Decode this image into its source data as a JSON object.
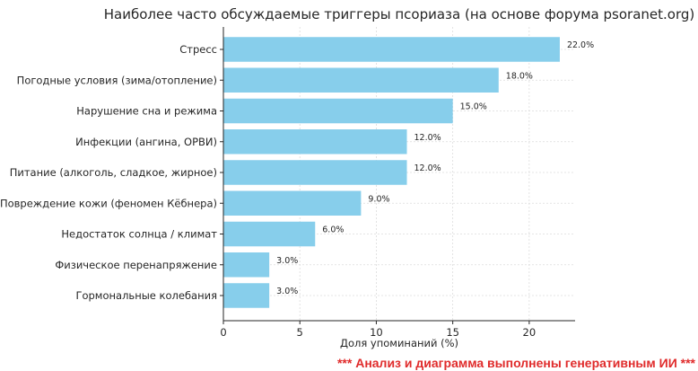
{
  "chart_data": {
    "type": "bar",
    "orientation": "horizontal",
    "title": "Наиболее часто обсуждаемые триггеры псориаза (на основе форума psoranet.org)",
    "xlabel": "Доля упоминаний (%)",
    "ylabel": "",
    "categories": [
      "Стресс",
      "Погодные условия (зима/отопление)",
      "Нарушение сна и режима",
      "Инфекции (ангина, ОРВИ)",
      "Питание (алкоголь, сладкое, жирное)",
      "Повреждение кожи (феномен Кёбнера)",
      "Недостаток солнца / климат",
      "Физическое перенапряжение",
      "Гормональные колебания"
    ],
    "values": [
      22.0,
      18.0,
      15.0,
      12.0,
      12.0,
      9.0,
      6.0,
      3.0,
      3.0
    ],
    "data_labels": [
      "22.0%",
      "18.0%",
      "15.0%",
      "12.0%",
      "12.0%",
      "9.0%",
      "6.0%",
      "3.0%",
      "3.0%"
    ],
    "xlim": [
      0,
      23
    ],
    "xticks": [
      0,
      5,
      10,
      15,
      20
    ],
    "grid": true,
    "bar_color": "#87ceeb"
  },
  "note": "*** Анализ и диаграмма выполнены генеративным ИИ ***"
}
